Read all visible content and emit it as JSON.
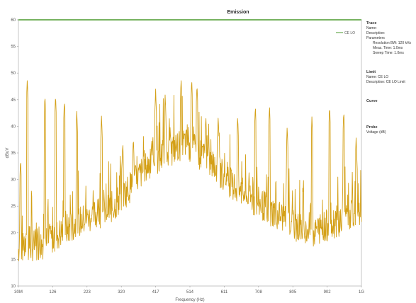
{
  "chart_data": {
    "type": "line",
    "title": "Emission",
    "xlabel": "Frequency (Hz)",
    "ylabel": "dBuV",
    "xlim": [
      30,
      1000
    ],
    "ylim": [
      10,
      60
    ],
    "x_ticks": [
      "30M",
      "126",
      "223",
      "320",
      "417",
      "514",
      "611",
      "708",
      "805",
      "902",
      "1G"
    ],
    "y_ticks": [
      "10",
      "15",
      "20",
      "25",
      "30",
      "35",
      "40",
      "45",
      "50",
      "55",
      "60"
    ],
    "grid": false,
    "legend": "top-right",
    "limit": {
      "name": "CE LO",
      "value": 60,
      "color": "#4a9a2c"
    },
    "trace_color": "#d4a017",
    "peaks": [
      {
        "x": 36,
        "y": 34
      },
      {
        "x": 55,
        "y": 49
      },
      {
        "x": 105,
        "y": 46
      },
      {
        "x": 135,
        "y": 46
      },
      {
        "x": 160,
        "y": 45
      },
      {
        "x": 195,
        "y": 43
      },
      {
        "x": 265,
        "y": 42
      },
      {
        "x": 325,
        "y": 37
      },
      {
        "x": 355,
        "y": 38
      },
      {
        "x": 418,
        "y": 47
      },
      {
        "x": 445,
        "y": 46
      },
      {
        "x": 490,
        "y": 49
      },
      {
        "x": 520,
        "y": 49
      },
      {
        "x": 535,
        "y": 48
      },
      {
        "x": 560,
        "y": 42
      },
      {
        "x": 595,
        "y": 42
      },
      {
        "x": 650,
        "y": 42
      },
      {
        "x": 700,
        "y": 44
      },
      {
        "x": 740,
        "y": 44
      },
      {
        "x": 790,
        "y": 40
      },
      {
        "x": 860,
        "y": 42
      },
      {
        "x": 910,
        "y": 44
      },
      {
        "x": 950,
        "y": 43
      },
      {
        "x": 985,
        "y": 38
      }
    ],
    "envelope": [
      {
        "x": 30,
        "y": 17
      },
      {
        "x": 100,
        "y": 18
      },
      {
        "x": 200,
        "y": 22
      },
      {
        "x": 300,
        "y": 25
      },
      {
        "x": 400,
        "y": 33
      },
      {
        "x": 500,
        "y": 37
      },
      {
        "x": 560,
        "y": 34
      },
      {
        "x": 650,
        "y": 28
      },
      {
        "x": 750,
        "y": 24
      },
      {
        "x": 850,
        "y": 20
      },
      {
        "x": 1000,
        "y": 24
      }
    ]
  },
  "panel": {
    "trace": {
      "heading": "Trace",
      "name": "Name:",
      "description": "Description:",
      "params_heading": "Parameters",
      "rbw": "Resolution BW: 120 kHz",
      "step": "Meas. Time: 1.0ms",
      "sweep": "Sweep Time: 1.0ms"
    },
    "limit": {
      "heading": "Limit",
      "name": "Name: CE LO",
      "description": "Description: CE LO Limit"
    },
    "curve": {
      "heading": "Curve"
    },
    "probe": {
      "heading": "Probe",
      "value": "Voltage (dB)"
    }
  }
}
